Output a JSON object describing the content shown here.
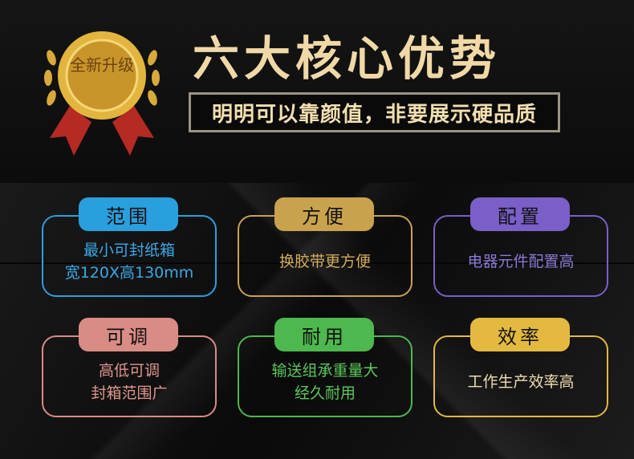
{
  "header": {
    "title": "六大核心优势",
    "subtitle": "明明可以靠颜值，非要展示硬品质",
    "badge_text": "全新升级"
  },
  "cards": [
    {
      "label": "范围",
      "lines": [
        "最小可封纸箱",
        "宽120X高130mm"
      ],
      "color": "#2a9fdd",
      "text_color": "#3aa8e6"
    },
    {
      "label": "方便",
      "lines": [
        "换胶带更方便"
      ],
      "color": "#c9a24e",
      "text_color": "#d2ac5a"
    },
    {
      "label": "配置",
      "lines": [
        "电器元件配置高"
      ],
      "color": "#7a5fc8",
      "text_color": "#8c78d6"
    },
    {
      "label": "可调",
      "lines": [
        "高低可调",
        "封箱范围广"
      ],
      "color": "#d98c84",
      "text_color": "#e0968c"
    },
    {
      "label": "耐用",
      "lines": [
        "输送组承重量大",
        "经久耐用"
      ],
      "color": "#4cb84d",
      "text_color": "#5cc65a"
    },
    {
      "label": "效率",
      "lines": [
        "工作生产效率高"
      ],
      "color": "#e3b93f",
      "text_color": "#f0ddb0"
    }
  ]
}
